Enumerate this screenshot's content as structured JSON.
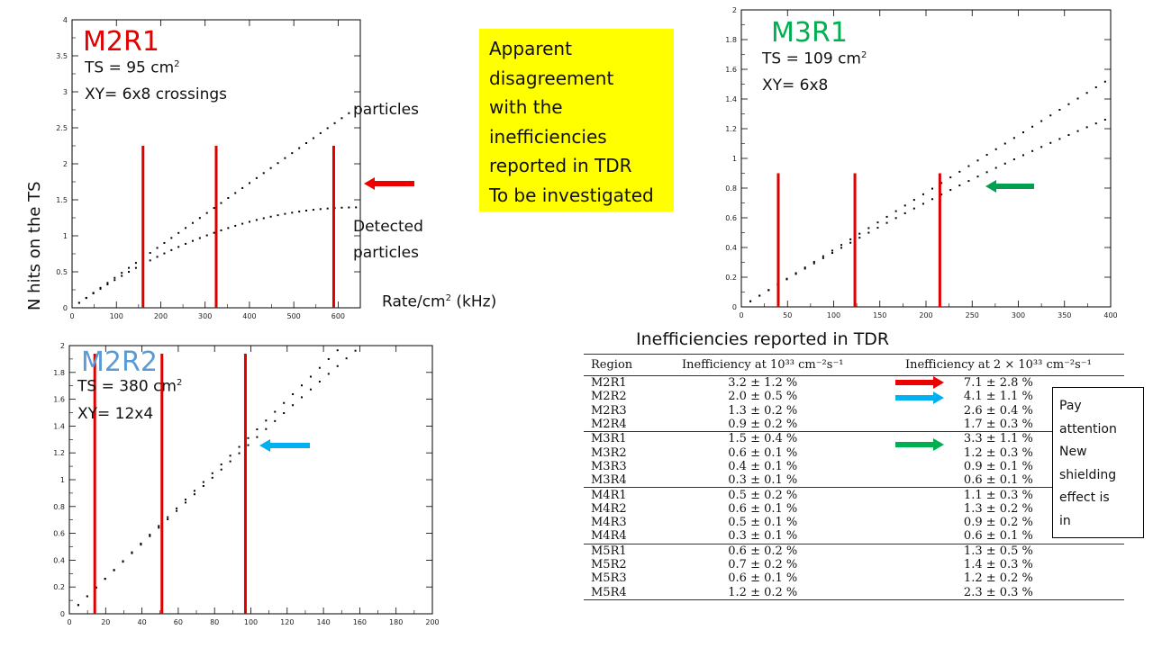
{
  "ylabel": "N hits on the TS",
  "xlabel_main": "Rate/cm",
  "xlabel_sup": "2",
  "xlabel_unit": "(kHz)",
  "chart_data": [
    {
      "type": "scatter",
      "name": "M2R1",
      "title": "M2R1",
      "title_color": "#e00000",
      "xlim": [
        0,
        650
      ],
      "ylim": [
        0,
        4
      ],
      "xticks": [
        0,
        100,
        200,
        300,
        400,
        500,
        600
      ],
      "yticks": [
        0,
        0.5,
        1,
        1.5,
        2,
        2.5,
        3,
        3.5,
        4
      ],
      "series": [
        {
          "name": "particles",
          "slope": 0.00433,
          "curv": 0
        },
        {
          "name": "Detected particles",
          "slope": 0.00433,
          "curv": 3.36e-06
        }
      ],
      "vlines": [
        160,
        325,
        590
      ],
      "vline_top": 2.25,
      "annotations": {
        "ts_label": "TS = 95 cm",
        "ts_sup": "2",
        "xy_label": "XY= 6x8 crossings",
        "series_top_label": "particles",
        "series_bottom_label_1": "Detected",
        "series_bottom_label_2": "particles"
      },
      "arrow_color": "#ee0000"
    },
    {
      "type": "scatter",
      "name": "M3R1",
      "title": "M3R1",
      "title_color": "#00b050",
      "xlim": [
        0,
        400
      ],
      "ylim": [
        0,
        2
      ],
      "xticks": [
        0,
        50,
        100,
        150,
        200,
        250,
        300,
        350,
        400
      ],
      "yticks": [
        0,
        0.2,
        0.4,
        0.6,
        0.8,
        1,
        1.2,
        1.4,
        1.6,
        1.8,
        2
      ],
      "series": [
        {
          "name": "particles",
          "slope": 0.00385,
          "curv": 0
        },
        {
          "name": "Detected particles",
          "slope": 0.00385,
          "curv": 1.65e-06
        }
      ],
      "vlines": [
        40,
        123,
        215
      ],
      "vline_top": 0.9,
      "annotations": {
        "ts_label": "TS = 109 cm",
        "ts_sup": "2",
        "xy_label": "XY= 6x8"
      },
      "arrow_color": "#00a050"
    },
    {
      "type": "scatter",
      "name": "M2R2",
      "title": "M2R2",
      "title_color": "#5b9bd5",
      "xlim": [
        0,
        200
      ],
      "ylim": [
        0,
        2
      ],
      "xticks": [
        0,
        20,
        40,
        60,
        80,
        100,
        120,
        140,
        160,
        180,
        200
      ],
      "yticks": [
        0,
        0.2,
        0.4,
        0.6,
        0.8,
        1,
        1.2,
        1.4,
        1.6,
        1.8,
        2
      ],
      "series": [
        {
          "name": "particles",
          "slope": 0.0133,
          "curv": 0
        },
        {
          "name": "Detected particles",
          "slope": 0.0133,
          "curv": 5.4e-06
        }
      ],
      "vlines": [
        14,
        51,
        97
      ],
      "vline_top": 1.94,
      "annotations": {
        "ts_label": "TS = 380 cm",
        "ts_sup": "2",
        "xy_label": "XY= 12x4"
      },
      "arrow_color": "#00b0f0"
    },
    {
      "type": "table",
      "title": "Inefficiencies reported in TDR",
      "columns": [
        "Region",
        "Inefficiency at 10³³ cm⁻²s⁻¹",
        "Inefficiency at 2 × 10³³ cm⁻²s⁻¹"
      ],
      "rows": [
        [
          "M2R1",
          "3.2 ± 1.2 %",
          "7.1 ± 2.8 %"
        ],
        [
          "M2R2",
          "2.0 ± 0.5 %",
          "4.1 ± 1.1 %"
        ],
        [
          "M2R3",
          "1.3 ± 0.2 %",
          "2.6 ± 0.4 %"
        ],
        [
          "M2R4",
          "0.9 ± 0.2 %",
          "1.7 ± 0.3 %"
        ],
        [
          "M3R1",
          "1.5 ± 0.4 %",
          "3.3 ± 1.1 %"
        ],
        [
          "M3R2",
          "0.6 ± 0.1 %",
          "1.2 ± 0.3 %"
        ],
        [
          "M3R3",
          "0.4 ± 0.1 %",
          "0.9 ± 0.1 %"
        ],
        [
          "M3R4",
          "0.3 ± 0.1 %",
          "0.6 ± 0.1 %"
        ],
        [
          "M4R1",
          "0.5 ± 0.2 %",
          "1.1 ± 0.3 %"
        ],
        [
          "M4R2",
          "0.6 ± 0.1 %",
          "1.3 ± 0.2 %"
        ],
        [
          "M4R3",
          "0.5 ± 0.1 %",
          "0.9 ± 0.2 %"
        ],
        [
          "M4R4",
          "0.3 ± 0.1 %",
          "0.6 ± 0.1 %"
        ],
        [
          "M5R1",
          "0.6 ± 0.2 %",
          "1.3 ± 0.5 %"
        ],
        [
          "M5R2",
          "0.7 ± 0.2 %",
          "1.4 ± 0.3 %"
        ],
        [
          "M5R3",
          "0.6 ± 0.1 %",
          "1.2 ± 0.2 %"
        ],
        [
          "M5R4",
          "1.2 ± 0.2 %",
          "2.3 ± 0.3 %"
        ]
      ],
      "row_arrows": [
        {
          "row": "M2R1",
          "color": "#ee0000"
        },
        {
          "row": "M2R2",
          "color": "#00b0f0"
        },
        {
          "row": "M3R1",
          "color": "#00b050"
        }
      ]
    }
  ],
  "note": {
    "lines": [
      "Apparent",
      "disagreement",
      "with the",
      "inefficiencies",
      "reported in TDR",
      "To be investigated"
    ],
    "background": "#ffff00"
  },
  "attention": {
    "lines": [
      "Pay",
      "attention",
      "New",
      "shielding",
      "effect is",
      "in"
    ]
  }
}
